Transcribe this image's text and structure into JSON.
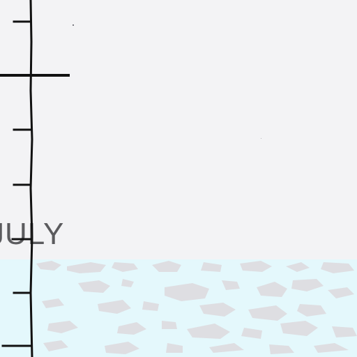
{
  "map": {
    "label": "JULY",
    "colors": {
      "land": "#f3f3f5",
      "water": "#e4f8fc",
      "ice": "#dedee2",
      "scale_line": "#111111",
      "label_text": "#5b5b5e"
    }
  }
}
